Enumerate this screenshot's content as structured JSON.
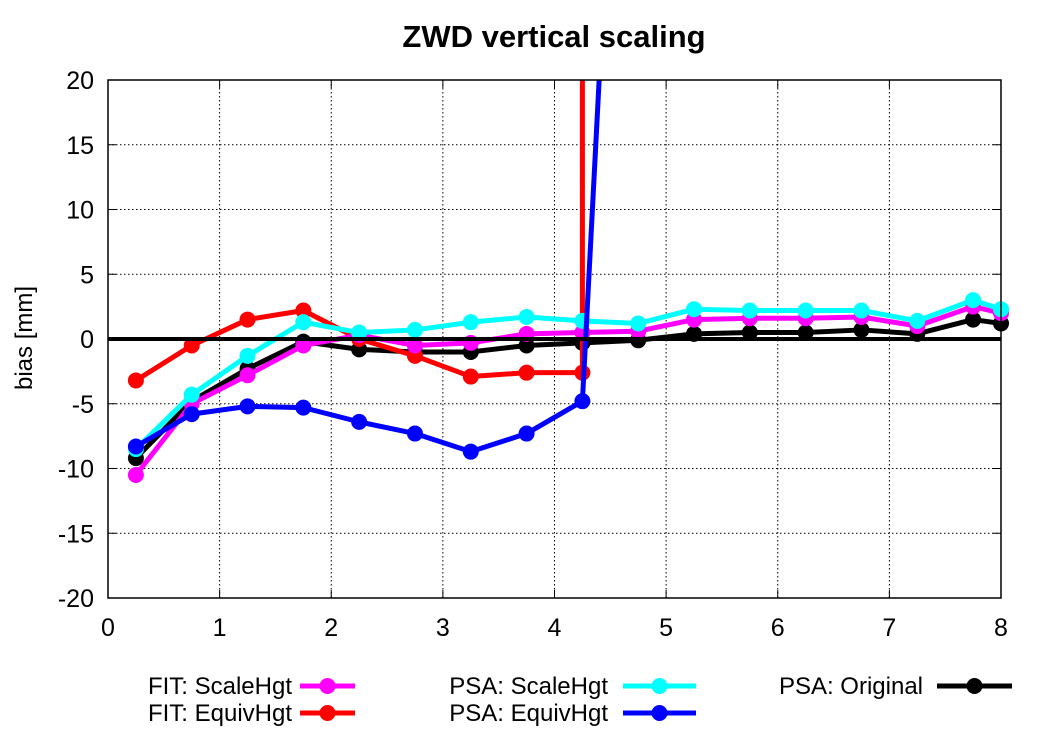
{
  "chart_data": {
    "type": "line",
    "title": "ZWD vertical scaling",
    "xlabel": "",
    "ylabel": "bias [mm]",
    "xlim": [
      0,
      8
    ],
    "ylim": [
      -20,
      20
    ],
    "xticks": [
      0,
      1,
      2,
      3,
      4,
      5,
      6,
      7,
      8
    ],
    "yticks": [
      -20,
      -15,
      -10,
      -5,
      0,
      5,
      10,
      15,
      20
    ],
    "grid": true,
    "zero_line": true,
    "legend_position": "bottom",
    "series": [
      {
        "name": "FIT: ScaleHgt",
        "color": "#ff00ff",
        "x": [
          0.25,
          0.75,
          1.25,
          1.75,
          2.25,
          2.75,
          3.25,
          3.75,
          4.25,
          4.75,
          5.25,
          5.75,
          6.25,
          6.75,
          7.25,
          7.75,
          8.0
        ],
        "y": [
          -10.5,
          -5.0,
          -2.8,
          -0.5,
          0.3,
          -0.5,
          -0.3,
          0.4,
          0.5,
          0.6,
          1.5,
          1.6,
          1.6,
          1.7,
          1.0,
          2.5,
          2.0
        ]
      },
      {
        "name": "FIT: EquivHgt",
        "color": "#ff0000",
        "x": [
          0.25,
          0.75,
          1.25,
          1.75,
          2.25,
          2.75,
          3.25,
          3.75,
          4.25,
          4.25
        ],
        "y": [
          -3.2,
          -0.5,
          1.5,
          2.2,
          0.0,
          -1.3,
          -2.9,
          -2.6,
          -2.6,
          20
        ],
        "marker_count": 9
      },
      {
        "name": "PSA: ScaleHgt",
        "color": "#00ffff",
        "x": [
          0.25,
          0.75,
          1.25,
          1.75,
          2.25,
          2.75,
          3.25,
          3.75,
          4.25,
          4.75,
          5.25,
          5.75,
          6.25,
          6.75,
          7.25,
          7.75,
          8.0
        ],
        "y": [
          -8.5,
          -4.3,
          -1.3,
          1.3,
          0.5,
          0.7,
          1.3,
          1.7,
          1.4,
          1.2,
          2.3,
          2.2,
          2.2,
          2.2,
          1.4,
          3.0,
          2.3
        ]
      },
      {
        "name": "PSA: EquivHgt",
        "color": "#0000ff",
        "x": [
          0.25,
          0.75,
          1.25,
          1.75,
          2.25,
          2.75,
          3.25,
          3.75,
          4.25,
          4.4
        ],
        "y": [
          -8.3,
          -5.8,
          -5.2,
          -5.3,
          -6.4,
          -7.3,
          -8.7,
          -7.3,
          -4.8,
          20
        ],
        "marker_count": 9
      },
      {
        "name": "PSA: Original",
        "color": "#000000",
        "x": [
          0.25,
          0.75,
          1.25,
          1.75,
          2.25,
          2.75,
          3.25,
          3.75,
          4.25,
          4.75,
          5.25,
          5.75,
          6.25,
          6.75,
          7.25,
          7.75,
          8.0
        ],
        "y": [
          -9.2,
          -4.8,
          -2.3,
          -0.2,
          -0.8,
          -1.0,
          -1.0,
          -0.5,
          -0.3,
          -0.1,
          0.4,
          0.5,
          0.5,
          0.7,
          0.4,
          1.5,
          1.2
        ]
      }
    ]
  }
}
